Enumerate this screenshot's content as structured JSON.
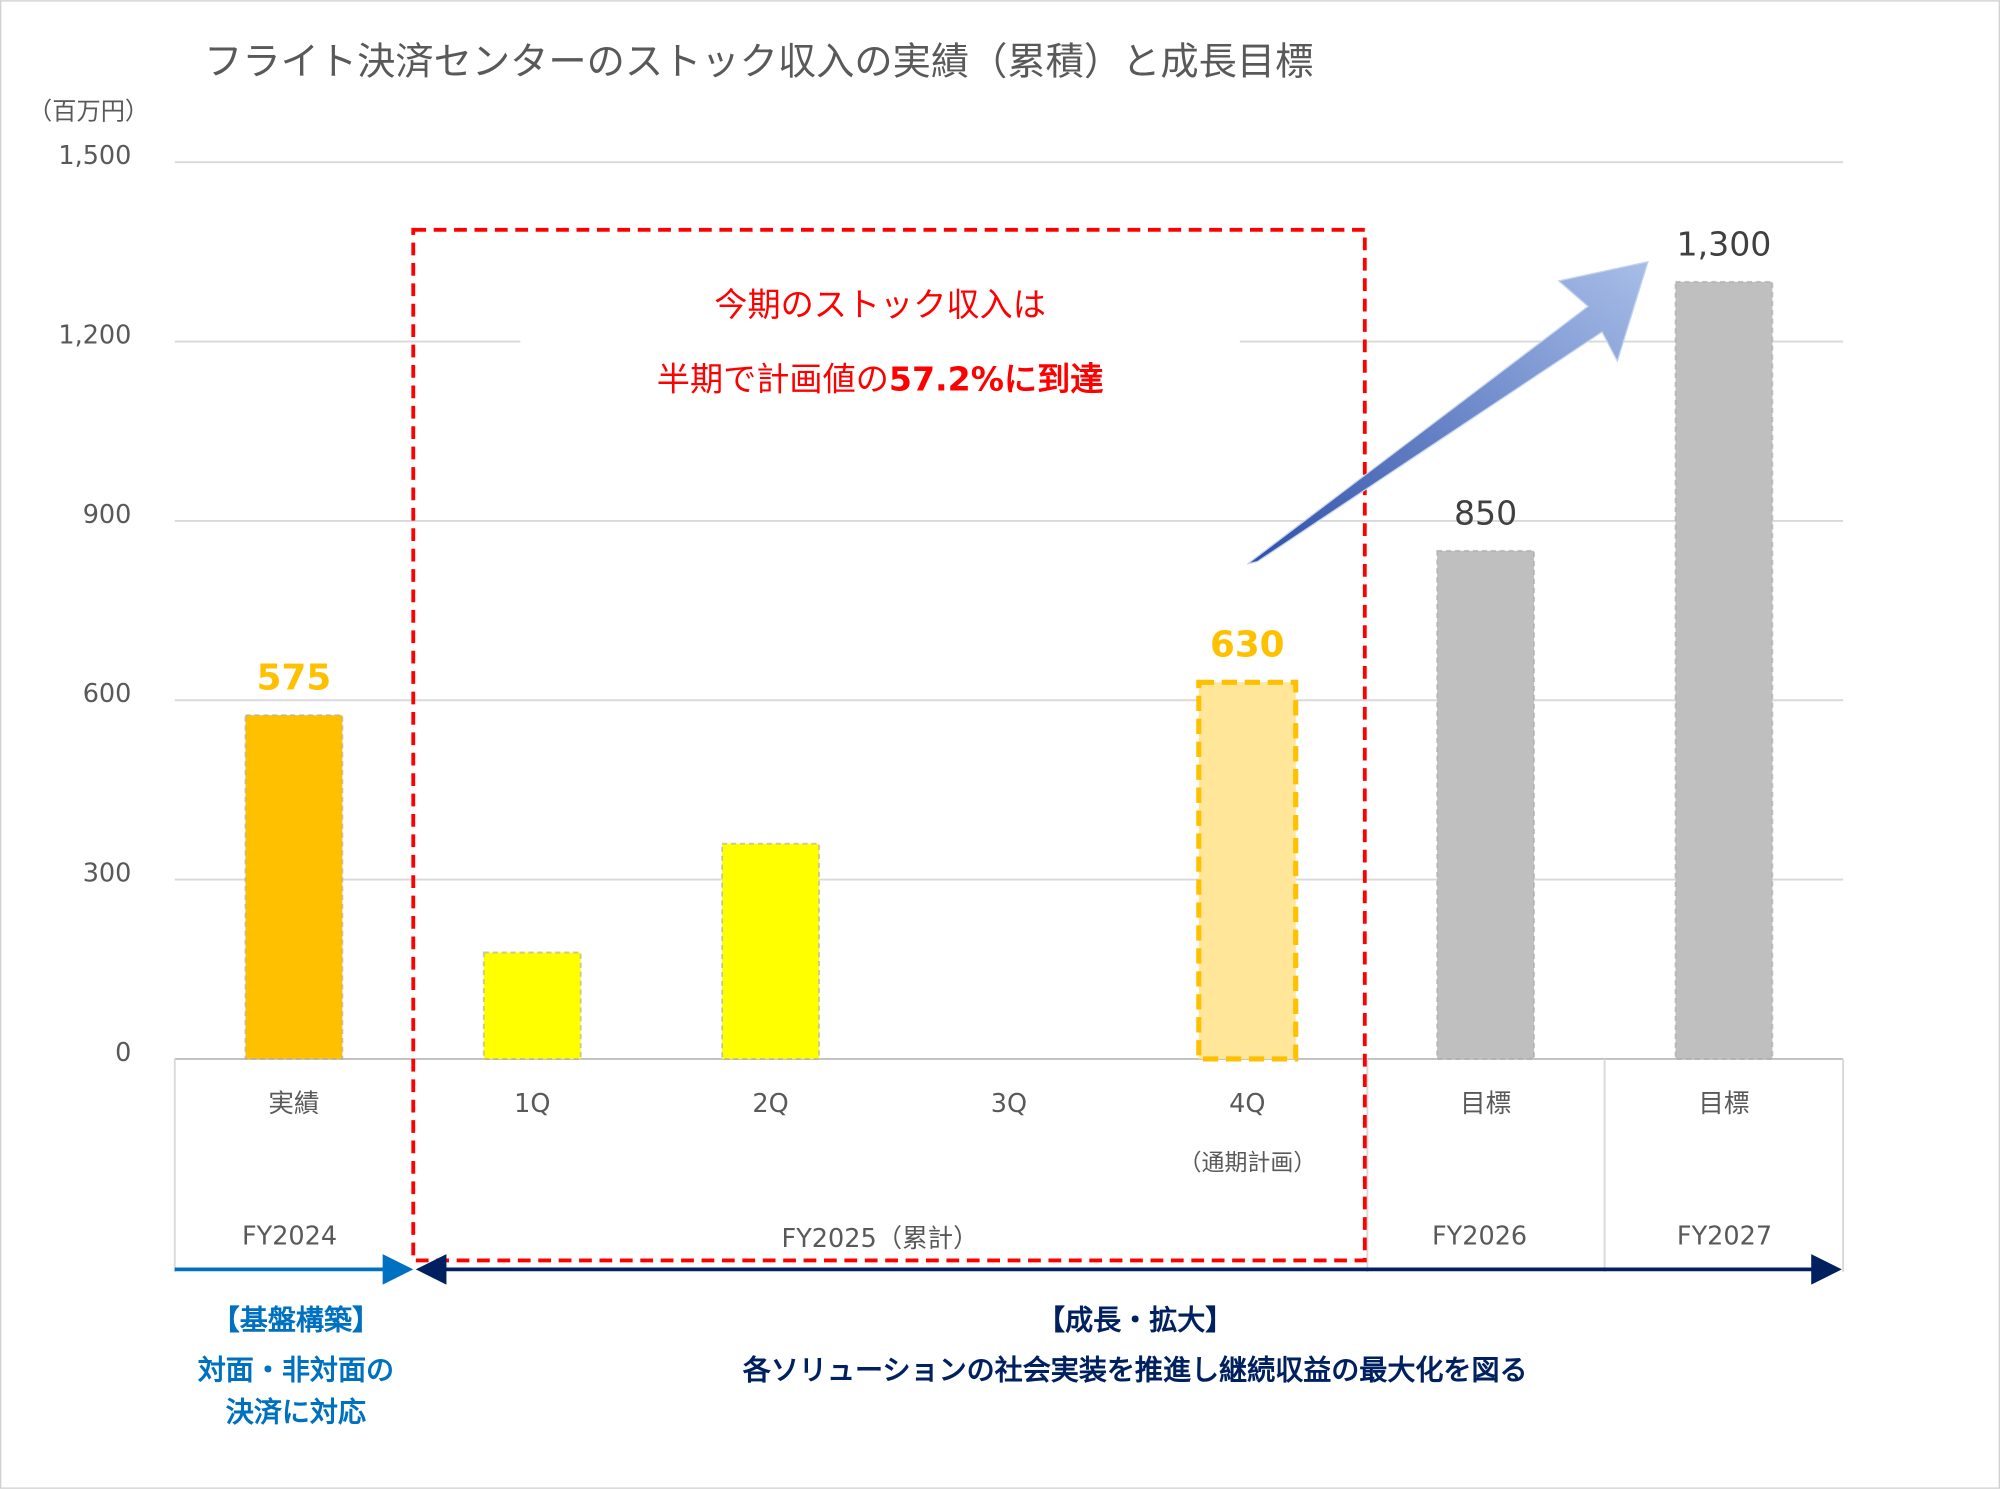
{
  "chart_data": {
    "type": "bar",
    "title": "フライト決済センターのストック収入の実績（累積）と成長目標",
    "y_unit": "（百万円）",
    "categories": [
      "実績",
      "1Q",
      "2Q",
      "3Q",
      "4Q",
      "目標",
      "目標"
    ],
    "category_note": "（通期計画）",
    "groups": [
      "FY2024",
      "FY2025（累計）",
      "FY2026",
      "FY2027"
    ],
    "values": [
      575,
      178,
      360,
      null,
      630,
      850,
      1300
    ],
    "value_labels": [
      "575",
      null,
      null,
      null,
      "630",
      "850",
      "1,300"
    ],
    "colors": [
      "#FFC000",
      "#FFFF00",
      "#FFFF00",
      null,
      "#FFE699",
      "#BFBFBF",
      "#BFBFBF"
    ],
    "ylim": [
      0,
      1500
    ],
    "yticks": [
      0,
      300,
      600,
      900,
      {
        "value": 1200,
        "label": "1,200"
      },
      {
        "value": 1500,
        "label": "1,500"
      }
    ],
    "grid": true,
    "annotation": {
      "line1": "今期のストック収入は",
      "line2": "半期で計画値の",
      "line2_emphasis": "57.2%に到達"
    },
    "phase1": {
      "title": "【基盤構築】",
      "line1": "対面・非対面の",
      "line2": "決済に対応"
    },
    "phase2": {
      "title": "【成長・拡大】",
      "line1": "各ソリューションの社会実装を推進し継続収益の最大化を図る"
    }
  }
}
